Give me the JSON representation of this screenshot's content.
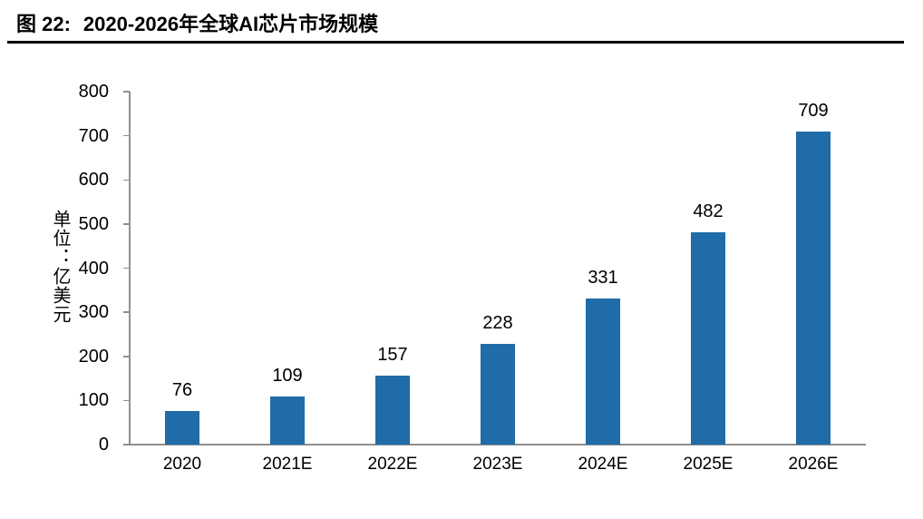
{
  "figure": {
    "label": "图 22:",
    "title": "2020-2026年全球AI芯片市场规模"
  },
  "chart_data": {
    "type": "bar",
    "title": "2020-2026年全球AI芯片市场规模",
    "categories": [
      "2020",
      "2021E",
      "2022E",
      "2023E",
      "2024E",
      "2025E",
      "2026E"
    ],
    "values": [
      76,
      109,
      157,
      228,
      331,
      482,
      709
    ],
    "data_labels": [
      "76",
      "109",
      "157",
      "228",
      "331",
      "482",
      "709"
    ],
    "xlabel": "",
    "ylabel": "单位：亿美元",
    "ylim": [
      0,
      800
    ],
    "ytick_step": 100,
    "yticks": [
      0,
      100,
      200,
      300,
      400,
      500,
      600,
      700,
      800
    ],
    "grid": false,
    "legend": "none",
    "colors": {
      "bar": "#1F6CA8",
      "axis": "#8F8F8F",
      "text": "#000000",
      "title_rule": "#000000"
    }
  }
}
